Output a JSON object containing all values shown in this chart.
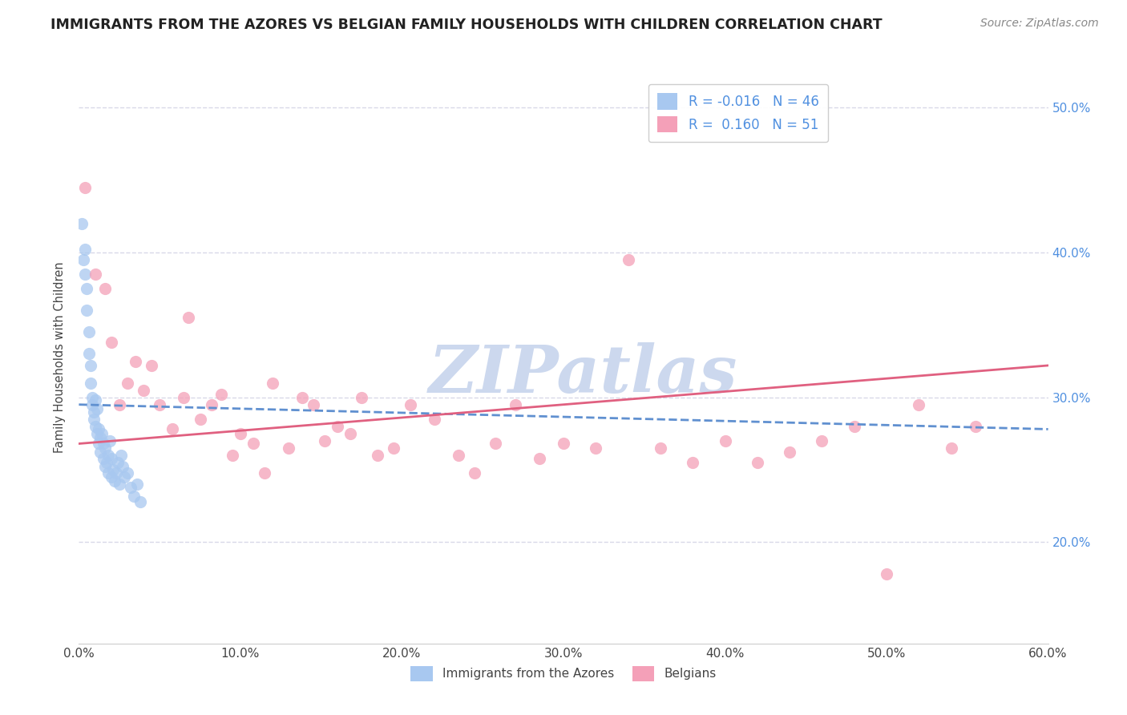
{
  "title": "IMMIGRANTS FROM THE AZORES VS BELGIAN FAMILY HOUSEHOLDS WITH CHILDREN CORRELATION CHART",
  "source": "Source: ZipAtlas.com",
  "ylabel": "Family Households with Children",
  "xmin": 0.0,
  "xmax": 0.6,
  "ymin": 0.13,
  "ymax": 0.525,
  "y_tick_vals": [
    0.2,
    0.3,
    0.4,
    0.5
  ],
  "x_tick_vals": [
    0.0,
    0.1,
    0.2,
    0.3,
    0.4,
    0.5,
    0.6
  ],
  "x_tick_labels": [
    "0.0%",
    "10.0%",
    "20.0%",
    "30.0%",
    "40.0%",
    "50.0%",
    "60.0%"
  ],
  "y_tick_labels_right": [
    "20.0%",
    "30.0%",
    "40.0%",
    "50.0%"
  ],
  "legend_top_labels": [
    "R = -0.016   N = 46",
    "R =  0.160   N = 51"
  ],
  "legend_bottom_labels": [
    "Immigrants from the Azores",
    "Belgians"
  ],
  "watermark": "ZIPatlas",
  "blue_scatter_x": [
    0.002,
    0.003,
    0.004,
    0.004,
    0.005,
    0.005,
    0.006,
    0.006,
    0.007,
    0.007,
    0.008,
    0.008,
    0.009,
    0.009,
    0.01,
    0.01,
    0.011,
    0.011,
    0.012,
    0.012,
    0.013,
    0.013,
    0.014,
    0.015,
    0.015,
    0.016,
    0.016,
    0.017,
    0.018,
    0.018,
    0.019,
    0.02,
    0.02,
    0.021,
    0.022,
    0.023,
    0.024,
    0.025,
    0.026,
    0.027,
    0.028,
    0.03,
    0.032,
    0.034,
    0.036,
    0.038
  ],
  "blue_scatter_y": [
    0.42,
    0.395,
    0.402,
    0.385,
    0.375,
    0.36,
    0.345,
    0.33,
    0.322,
    0.31,
    0.3,
    0.295,
    0.29,
    0.285,
    0.298,
    0.28,
    0.292,
    0.275,
    0.278,
    0.268,
    0.272,
    0.262,
    0.275,
    0.268,
    0.258,
    0.265,
    0.252,
    0.255,
    0.26,
    0.248,
    0.27,
    0.258,
    0.245,
    0.25,
    0.242,
    0.248,
    0.255,
    0.24,
    0.26,
    0.252,
    0.245,
    0.248,
    0.238,
    0.232,
    0.24,
    0.228
  ],
  "pink_scatter_x": [
    0.004,
    0.01,
    0.016,
    0.02,
    0.025,
    0.03,
    0.035,
    0.04,
    0.045,
    0.05,
    0.058,
    0.065,
    0.068,
    0.075,
    0.082,
    0.088,
    0.095,
    0.1,
    0.108,
    0.115,
    0.12,
    0.13,
    0.138,
    0.145,
    0.152,
    0.16,
    0.168,
    0.175,
    0.185,
    0.195,
    0.205,
    0.22,
    0.235,
    0.245,
    0.258,
    0.27,
    0.285,
    0.3,
    0.32,
    0.34,
    0.36,
    0.38,
    0.4,
    0.42,
    0.44,
    0.46,
    0.48,
    0.5,
    0.52,
    0.54,
    0.555
  ],
  "pink_scatter_y": [
    0.445,
    0.385,
    0.375,
    0.338,
    0.295,
    0.31,
    0.325,
    0.305,
    0.322,
    0.295,
    0.278,
    0.3,
    0.355,
    0.285,
    0.295,
    0.302,
    0.26,
    0.275,
    0.268,
    0.248,
    0.31,
    0.265,
    0.3,
    0.295,
    0.27,
    0.28,
    0.275,
    0.3,
    0.26,
    0.265,
    0.295,
    0.285,
    0.26,
    0.248,
    0.268,
    0.295,
    0.258,
    0.268,
    0.265,
    0.395,
    0.265,
    0.255,
    0.27,
    0.255,
    0.262,
    0.27,
    0.28,
    0.178,
    0.295,
    0.265,
    0.28
  ],
  "blue_line_x": [
    0.0,
    0.6
  ],
  "blue_line_y": [
    0.295,
    0.278
  ],
  "pink_line_x": [
    0.0,
    0.6
  ],
  "pink_line_y": [
    0.268,
    0.322
  ],
  "scatter_color_blue": "#a8c8f0",
  "scatter_color_pink": "#f4a0b8",
  "line_color_blue": "#6090d0",
  "line_color_pink": "#e06080",
  "background_color": "#ffffff",
  "grid_color": "#d8d8e8",
  "title_fontsize": 12.5,
  "source_fontsize": 10,
  "axis_label_fontsize": 10.5,
  "tick_fontsize": 11,
  "watermark_fontsize": 60,
  "watermark_color": "#ccd8ee",
  "right_yaxis_color": "#5090e0",
  "legend_fontsize": 12,
  "scatter_size": 120,
  "scatter_alpha": 0.75,
  "scatter_edgewidth": 0.5
}
